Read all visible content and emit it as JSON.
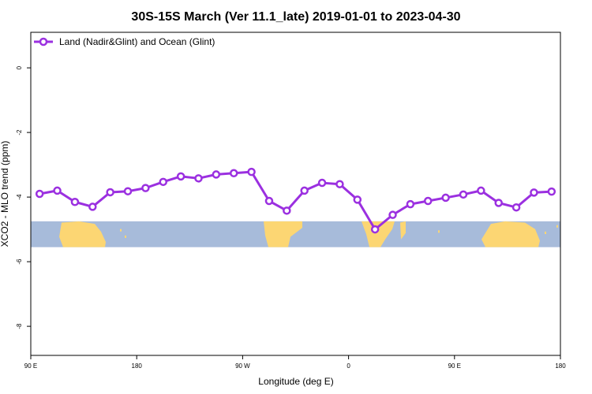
{
  "chart_data": {
    "type": "line",
    "title": "30S-15S March (Ver 11.1_late)   2019-01-01 to 2023-04-30",
    "xlabel": "Longitude (deg E)",
    "ylabel": "XCO2 - MLO trend (ppm)",
    "x_ticks": [
      "90 E",
      "180",
      "90 W",
      "0",
      "90 E",
      "180"
    ],
    "y_ticks": [
      "0",
      "-2",
      "-4",
      "-6",
      "-8"
    ],
    "x_tick_values": [
      90,
      180,
      270,
      360,
      450,
      540
    ],
    "y_tick_values": [
      0,
      -2,
      -4,
      -6,
      -8
    ],
    "xlim": [
      90,
      540
    ],
    "ylim": [
      -8.9,
      1.1
    ],
    "grid": false,
    "legend_position": "top-left",
    "series": [
      {
        "name": "Land (Nadir&Glint) and Ocean (Glint)",
        "color": "#9b30e0",
        "x": [
          97.5,
          112.5,
          127.5,
          142.5,
          157.5,
          172.5,
          187.5,
          202.5,
          217.5,
          232.5,
          247.5,
          262.5,
          277.5,
          292.5,
          307.5,
          322.5,
          337.5,
          352.5,
          367.5,
          382.5,
          397.5,
          412.5,
          427.5,
          442.5,
          457.5,
          472.5,
          487.5,
          502.5,
          517.5,
          532.5
        ],
        "y": [
          -3.9,
          -3.8,
          -4.15,
          -4.3,
          -3.85,
          -3.82,
          -3.72,
          -3.53,
          -3.36,
          -3.42,
          -3.3,
          -3.26,
          -3.22,
          -4.12,
          -4.42,
          -3.8,
          -3.56,
          -3.6,
          -4.08,
          -5.0,
          -4.55,
          -4.22,
          -4.12,
          -4.02,
          -3.92,
          -3.8,
          -4.18,
          -4.32,
          -3.86,
          -3.83
        ]
      }
    ],
    "map_strip": {
      "y_range": [
        -5.55,
        -4.75
      ],
      "ocean_color": "#a7bbda",
      "land_color": "#fcd673"
    }
  }
}
